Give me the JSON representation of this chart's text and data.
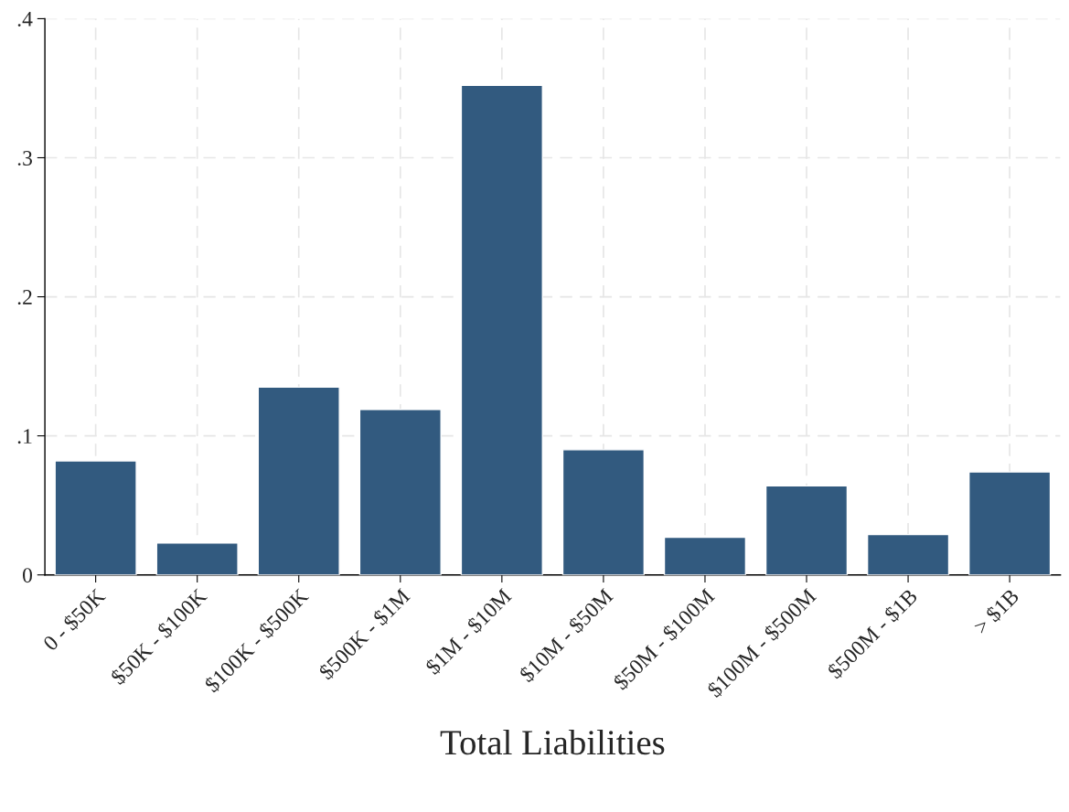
{
  "chart_data": {
    "type": "bar",
    "xlabel": "Total Liabilities",
    "categories": [
      "0 - $50K",
      "$50K - $100K",
      "$100K - $500K",
      "$500K - $1M",
      "$1M - $10M",
      "$10M - $50M",
      "$50M - $100M",
      "$100M - $500M",
      "$500M - $1B",
      "> $1B"
    ],
    "values": [
      0.082,
      0.023,
      0.135,
      0.119,
      0.352,
      0.09,
      0.027,
      0.064,
      0.029,
      0.074
    ],
    "color": "#325a7f",
    "ylim": [
      0,
      0.4
    ],
    "yticks": [
      0,
      {
        "value": 0.1,
        "label": ".1"
      },
      {
        "value": 0.2,
        "label": ".2"
      },
      {
        "value": 0.3,
        "label": ".3"
      },
      {
        "value": 0.4,
        "label": ".4"
      }
    ],
    "grid": true
  }
}
